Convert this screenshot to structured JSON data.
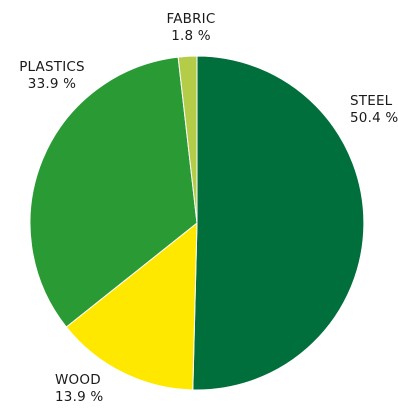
{
  "chart_data": {
    "type": "pie",
    "title": "",
    "slices": [
      {
        "label": "STEEL",
        "value_text": "50.4 %",
        "value": 50.4,
        "color": "#006f3c"
      },
      {
        "label": "WOOD",
        "value_text": "13.9 %",
        "value": 13.9,
        "color": "#ffe800"
      },
      {
        "label": "PLASTICS",
        "value_text": "33.9 %",
        "value": 33.9,
        "color": "#2a9b34"
      },
      {
        "label": "FABRIC",
        "value_text": "1.8 %",
        "value": 1.8,
        "color": "#b4cc48"
      }
    ],
    "start_angle_deg": 0,
    "direction": "clockwise",
    "slice_border_color": "#ffffff"
  }
}
